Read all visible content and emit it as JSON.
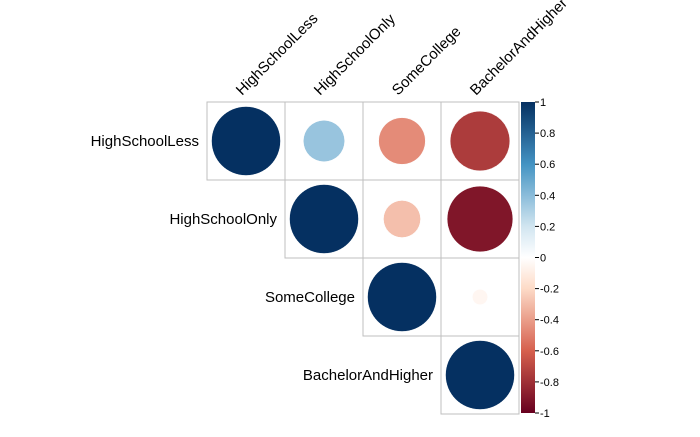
{
  "chart_data": {
    "type": "heatmap",
    "variables": [
      "HighSchoolLess",
      "HighSchoolOnly",
      "SomeCollege",
      "BachelorAndHigher"
    ],
    "layout": "upper-triangle",
    "method": "circle",
    "matrix": [
      [
        1.0,
        0.36,
        -0.46,
        -0.75
      ],
      [
        0.36,
        1.0,
        -0.29,
        -0.91
      ],
      [
        -0.46,
        -0.29,
        1.0,
        -0.05
      ],
      [
        -0.75,
        -0.91,
        -0.05,
        1.0
      ]
    ],
    "colorbar": {
      "ticks": [
        1,
        0.8,
        0.6,
        0.4,
        0.2,
        0,
        -0.2,
        -0.4,
        -0.6,
        -0.8,
        -1
      ],
      "tick_labels": [
        "1",
        "0.8",
        "0.6",
        "0.4",
        "0.2",
        "0",
        "-0.2",
        "-0.4",
        "-0.6",
        "-0.8",
        "-1"
      ],
      "range": [
        -1,
        1
      ]
    },
    "colors": {
      "negative_strong": "#67001f",
      "negative_mid": "#d6604d",
      "negative_light": "#fddbc7",
      "neutral": "#ffffff",
      "positive_light": "#d1e5f0",
      "positive_mid": "#4393c3",
      "positive_strong": "#053061",
      "grid": "#bfbfbf"
    }
  }
}
